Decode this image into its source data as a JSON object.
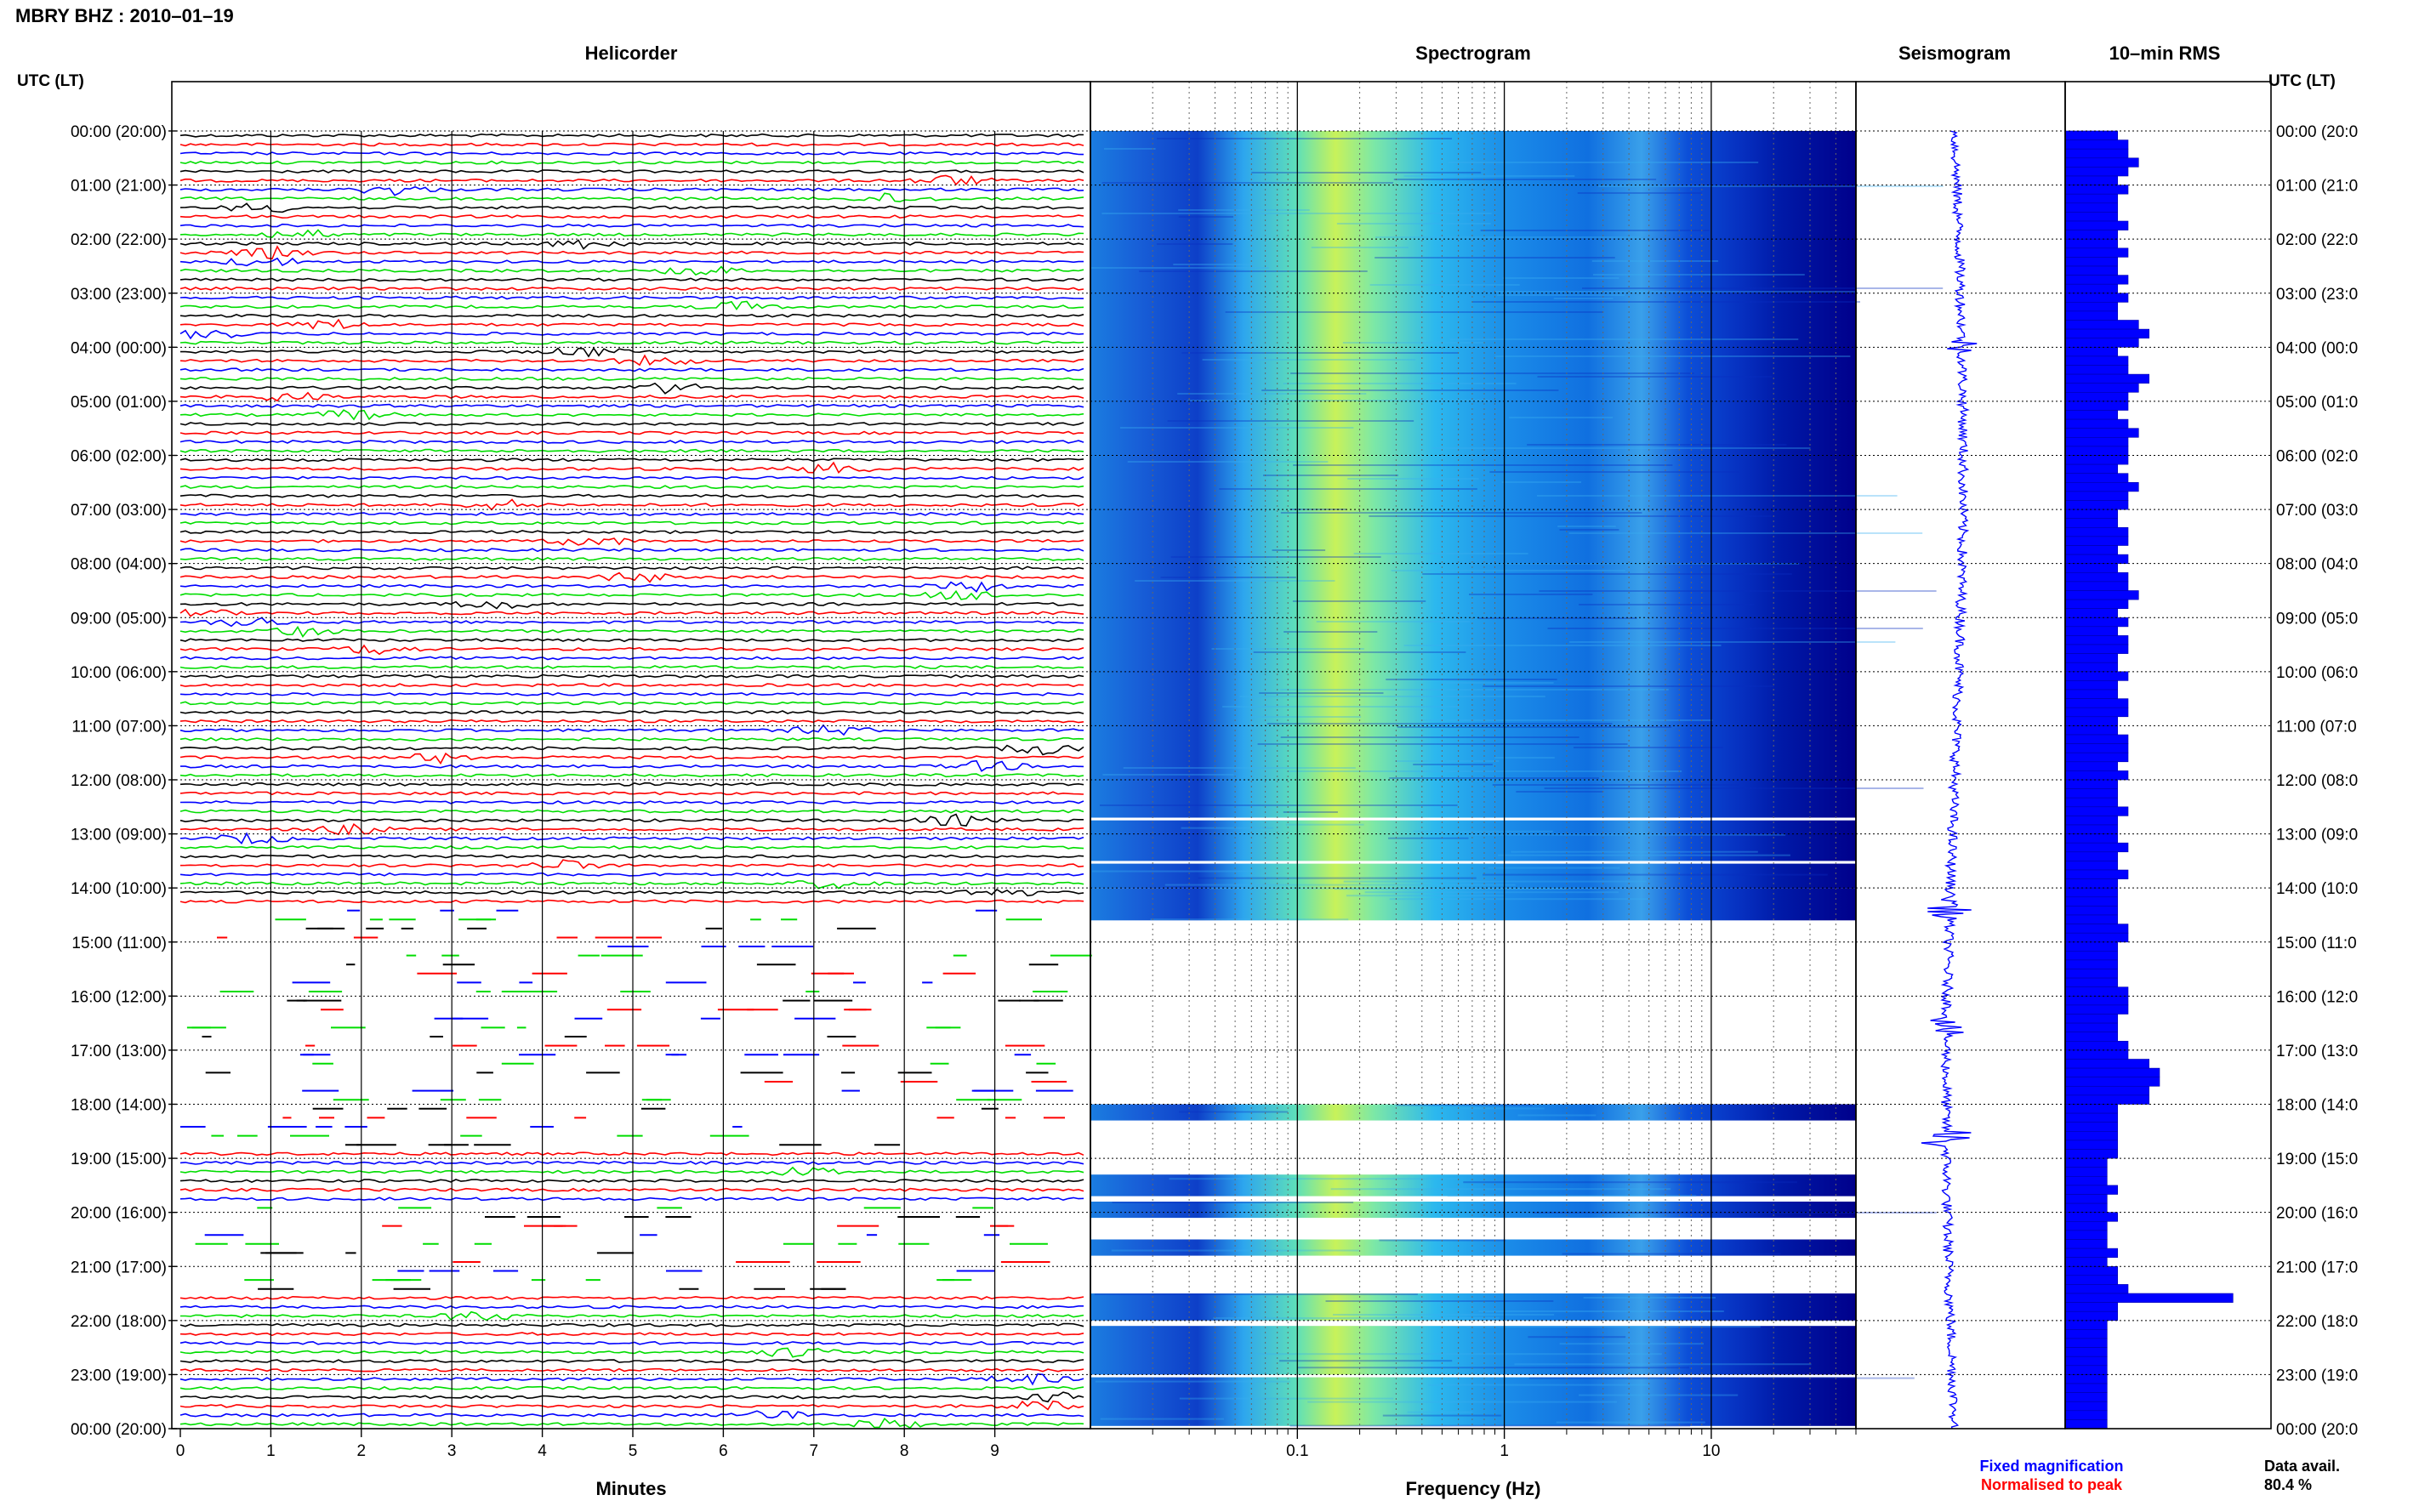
{
  "header": {
    "title": "MBRY BHZ : 2010–01–19"
  },
  "panels": {
    "helicorder": "Helicorder",
    "spectrogram": "Spectrogram",
    "seismogram": "Seismogram",
    "rms": "10–min RMS"
  },
  "axis_header": {
    "left": "UTC (LT)",
    "right": "UTC (LT)"
  },
  "time_labels": [
    "00:00 (20:00)",
    "01:00 (21:00)",
    "02:00 (22:00)",
    "03:00 (23:00)",
    "04:00 (00:00)",
    "05:00 (01:00)",
    "06:00 (02:00)",
    "07:00 (03:00)",
    "08:00 (04:00)",
    "09:00 (05:00)",
    "10:00 (06:00)",
    "11:00 (07:00)",
    "12:00 (08:00)",
    "13:00 (09:00)",
    "14:00 (10:00)",
    "15:00 (11:00)",
    "16:00 (12:00)",
    "17:00 (13:00)",
    "18:00 (14:00)",
    "19:00 (15:00)",
    "20:00 (16:00)",
    "21:00 (17:00)",
    "22:00 (18:00)",
    "23:00 (19:00)",
    "00:00 (20:00)"
  ],
  "right_time_labels": [
    "00:00 (20:0",
    "01:00 (21:0",
    "02:00 (22:0",
    "03:00 (23:0",
    "04:00 (00:0",
    "05:00 (01:0",
    "06:00 (02:0",
    "07:00 (03:0",
    "08:00 (04:0",
    "09:00 (05:0",
    "10:00 (06:0",
    "11:00 (07:0",
    "12:00 (08:0",
    "13:00 (09:0",
    "14:00 (10:0",
    "15:00 (11:0",
    "16:00 (12:0",
    "17:00 (13:0",
    "18:00 (14:0",
    "19:00 (15:0",
    "20:00 (16:0",
    "21:00 (17:0",
    "22:00 (18:0",
    "23:00 (19:0",
    "00:00 (20:0"
  ],
  "legend": {
    "fixed": "Fixed magnification",
    "normalised": "Normalised to peak",
    "fixed_color": "#0000ff",
    "normalised_color": "#ff0000"
  },
  "availability": {
    "label": "Data avail.",
    "value": "80.4 %"
  },
  "chart_data": [
    {
      "type": "line",
      "name": "helicorder",
      "title": "Helicorder",
      "xlabel": "Minutes",
      "xticks": [
        "0",
        "1",
        "2",
        "3",
        "4",
        "5",
        "6",
        "7",
        "8",
        "9"
      ],
      "xlim": [
        0,
        10
      ],
      "rows_per_hour": 6,
      "trace_colors": [
        "#000000",
        "#ff0000",
        "#0000ff",
        "#00dd00"
      ],
      "gaps_utc_hours": [
        [
          14.3,
          18.7
        ],
        [
          19.7,
          21.5
        ]
      ]
    },
    {
      "type": "heatmap",
      "name": "spectrogram",
      "title": "Spectrogram",
      "xlabel": "Frequency (Hz)",
      "x_scale": "log",
      "xlim": [
        0.01,
        50
      ],
      "xticks": [
        "0.1",
        "1",
        "10"
      ],
      "peak_frequency_hz": 0.3,
      "data_bands_utc_hours": [
        [
          0,
          12.7
        ],
        [
          12.75,
          13.5
        ],
        [
          13.55,
          14.0
        ],
        [
          14.0,
          14.6
        ],
        [
          18.0,
          18.3
        ],
        [
          19.3,
          19.7
        ],
        [
          19.8,
          20.1
        ],
        [
          20.5,
          20.8
        ],
        [
          21.5,
          22.0
        ],
        [
          22.1,
          23.0
        ],
        [
          23.05,
          23.95
        ]
      ],
      "colormap": [
        "#00008b",
        "#0000ff",
        "#0080ff",
        "#00c0ff",
        "#40ffc0",
        "#c0ff40",
        "#ffff00"
      ]
    },
    {
      "type": "line",
      "name": "seismogram",
      "title": "Seismogram",
      "color": "#0000ff"
    },
    {
      "type": "bar",
      "name": "rms",
      "title": "10–min RMS",
      "orientation": "horizontal",
      "color": "#0000ff",
      "bin_minutes": 10,
      "values": [
        5,
        6,
        6,
        7,
        6,
        5,
        6,
        5,
        5,
        5,
        6,
        5,
        5,
        6,
        5,
        5,
        6,
        5,
        6,
        5,
        5,
        7,
        8,
        7,
        5,
        6,
        6,
        8,
        7,
        6,
        6,
        5,
        6,
        7,
        6,
        6,
        6,
        5,
        6,
        7,
        6,
        6,
        5,
        5,
        6,
        6,
        5,
        6,
        5,
        6,
        6,
        7,
        6,
        5,
        6,
        5,
        6,
        6,
        5,
        5,
        6,
        5,
        5,
        6,
        6,
        5,
        5,
        6,
        6,
        6,
        5,
        6,
        5,
        5,
        5,
        6,
        5,
        5,
        5,
        6,
        5,
        5,
        6,
        5,
        5,
        5,
        5,
        5,
        6,
        6,
        5,
        5,
        5,
        5,
        5,
        6,
        6,
        6,
        5,
        5,
        5,
        6,
        6,
        8,
        9,
        9,
        8,
        8,
        5,
        5,
        5,
        5,
        5,
        5,
        4,
        4,
        4,
        5,
        4,
        4,
        5,
        4,
        4,
        4,
        5,
        4,
        5,
        5,
        6,
        16,
        5,
        5,
        4,
        4,
        4,
        4,
        4,
        4,
        4,
        4,
        4,
        4,
        4,
        4,
        4,
        4,
        5,
        4,
        4,
        4,
        4,
        4,
        4,
        4,
        4,
        4,
        4,
        4,
        4,
        6,
        4,
        4,
        4,
        4,
        4,
        5,
        4,
        4,
        4,
        4,
        4,
        4,
        4,
        4,
        4,
        4,
        4,
        4,
        4,
        4,
        4,
        4,
        4,
        4,
        4,
        4,
        4,
        4,
        4,
        4,
        4,
        4,
        4,
        5,
        5,
        6,
        6,
        6,
        6,
        5,
        5,
        6,
        7,
        6
      ]
    }
  ]
}
